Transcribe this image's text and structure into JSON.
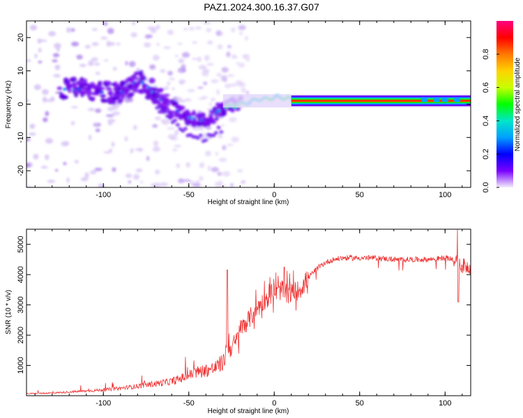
{
  "title": "PAZ1.2024.300.16.37.G07",
  "chart_data": [
    {
      "type": "heatmap",
      "xlabel": "Height of straight line (km)",
      "ylabel": "Frequency (Hz)",
      "xlim": [
        -145,
        115
      ],
      "ylim": [
        -25,
        25
      ],
      "xticks": [
        -100,
        -50,
        0,
        50,
        100
      ],
      "yticks": [
        -20,
        -10,
        0,
        10,
        20
      ],
      "colorbar": {
        "label": "Normalized spectral amplitude",
        "range": [
          0,
          1
        ],
        "ticks": [
          "0.0",
          "0.2",
          "0.4",
          "0.6",
          "0.8"
        ],
        "colormap": "rainbow",
        "colors": [
          "#f4eefc",
          "#7800ff",
          "#0000ff",
          "#00a0ff",
          "#00e6c8",
          "#00ff00",
          "#c8ff00",
          "#ffd200",
          "#ff7800",
          "#ff0000",
          "#ff0080"
        ]
      },
      "ridge": {
        "description_values": [
          [
            -120,
            4.5
          ],
          [
            -110,
            4.5
          ],
          [
            -100,
            3.5
          ],
          [
            -90,
            3
          ],
          [
            -80,
            7
          ],
          [
            -75,
            6
          ],
          [
            -70,
            3
          ],
          [
            -60,
            -1
          ],
          [
            -50,
            -4
          ],
          [
            -40,
            -5
          ],
          [
            -30,
            -1
          ],
          [
            -25,
            -0.5
          ],
          [
            -20,
            0
          ],
          [
            -15,
            0.5
          ],
          [
            -10,
            1.5
          ],
          [
            -5,
            1.5
          ],
          [
            0,
            2
          ],
          [
            5,
            2
          ],
          [
            10,
            1.5
          ],
          [
            20,
            1
          ],
          [
            50,
            1
          ],
          [
            80,
            1
          ],
          [
            100,
            1
          ],
          [
            115,
            1
          ]
        ]
      }
    },
    {
      "type": "line",
      "xlabel": "Height of straight line (km)",
      "ylabel": "SNR (10 * v/v)",
      "xlim": [
        -145,
        115
      ],
      "ylim": [
        0,
        5500
      ],
      "xticks": [
        -100,
        -50,
        0,
        50,
        100
      ],
      "yticks": [
        1000,
        2000,
        3000,
        4000,
        5000
      ],
      "color": "#ee3333",
      "series": [
        {
          "x": [
            -145,
            -130,
            -120,
            -110,
            -100,
            -90,
            -80,
            -70,
            -60,
            -55,
            -50,
            -45,
            -40,
            -35,
            -30,
            -28,
            -25,
            -22,
            -20,
            -15,
            -10,
            -5,
            0,
            5,
            10,
            15,
            20,
            25,
            30,
            35,
            40,
            50,
            60,
            70,
            80,
            90,
            100,
            105,
            108,
            110,
            115
          ],
          "values": [
            60,
            80,
            110,
            140,
            170,
            220,
            280,
            350,
            420,
            500,
            600,
            700,
            750,
            800,
            1000,
            1500,
            1600,
            1800,
            2200,
            2500,
            2900,
            3200,
            3400,
            3500,
            3400,
            3500,
            3900,
            4200,
            4400,
            4500,
            4550,
            4550,
            4550,
            4500,
            4500,
            4500,
            4550,
            4500,
            4300,
            4300,
            4250
          ]
        }
      ]
    }
  ]
}
